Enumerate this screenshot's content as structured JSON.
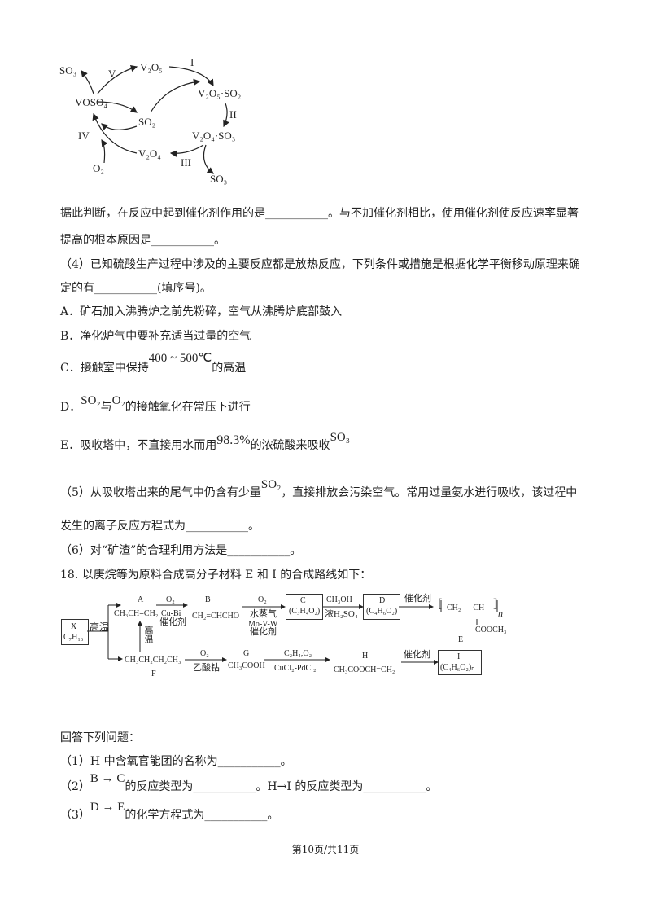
{
  "cycle": {
    "so3_top": "SO₃",
    "step_v": "V",
    "v2o5": "V₂O₅",
    "step_i": "I",
    "v2o5_so2": "V₂O₅·SO₂",
    "voso4": "VOSO₄",
    "so2": "SO₂",
    "step_ii": "II",
    "v2o4_so3": "V₂O₄·SO₃",
    "step_iv": "IV",
    "v2o4": "V₂O₄",
    "step_iii": "III",
    "so3_bottom": "SO₃",
    "o2": "O₂"
  },
  "lines": [
    "据此判断，在反应中起到催化剂作用的是___________。与不加催化剂相比，使用催化剂使反应速率显著",
    "提高的根本原因是___________。",
    "（4）已知硫酸生产过程中涉及的主要反应都是放热反应，下列条件或措施是根据化学平衡移动原理来确",
    "定的有___________(填序号)。",
    "A．矿石加入沸腾炉之前先粉碎，空气从沸腾炉底部鼓入",
    "B．净化炉气中要补充适当过量的空气"
  ],
  "option_c": {
    "prefix": "C．接触室中保持",
    "formula": "400 ~ 500℃",
    "suffix": "的高温"
  },
  "option_d": {
    "prefix": "D．",
    "f1": "SO₂",
    "mid": "与",
    "f2": "O₂",
    "suffix": "的接触氧化在常压下进行"
  },
  "option_e": {
    "prefix": "E．吸收塔中，不直接用水而用",
    "formula": "98.3%",
    "mid": "的浓硫酸来吸收",
    "f2": "SO₃"
  },
  "q5": {
    "prefix": "（5）从吸收塔出来的尾气中仍含有少量",
    "formula": "SO₂",
    "suffix": "，直接排放会污染空气。常用过量氨水进行吸收，该过程中"
  },
  "lines2": [
    "发生的离子反应方程式为___________。",
    "（6）对“矿渣”的合理利用方法是___________。",
    "18. 以庚烷等为原料合成高分子材料 E 和 I 的合成路线如下："
  ],
  "route": {
    "x_label": "X",
    "x_formula": "C₇H₁₆",
    "high_temp": "高温",
    "high_temp_vertical": "高温",
    "a_label": "A",
    "a_formula": "CH₃CH=CH₂",
    "ab_reagent": "O₂",
    "ab_cat1": "Cu-Bi",
    "ab_cat2": "催化剂",
    "b_label": "B",
    "b_formula": "CH₂=CHCHO",
    "bc_reagent": "O₂",
    "bc_cond1": "水蒸气",
    "bc_cond2": "Mo-V-W",
    "bc_cond3": "催化剂",
    "c_label": "C",
    "c_formula": "(C₃H₄O₂)",
    "cd_reagent": "CH₃OH",
    "cd_cond": "浓H₂SO₄",
    "d_label": "D",
    "d_formula": "(C₄H₆O₂)",
    "de_cat": "催化剂",
    "e_main": "CH₂ — CH",
    "e_n": "n",
    "e_side": "COOCH₃",
    "e_label": "E",
    "f_formula": "CH₃CH₂CH₂CH₃",
    "f_label": "F",
    "fg_reagent": "O₂",
    "fg_cat": "乙酸钴",
    "g_label": "G",
    "g_formula": "CH₃COOH",
    "gh_reagent": "C₂H₄,O₂",
    "gh_cat": "CuCl₂-PdCl₂",
    "h_label": "H",
    "h_formula": "CH₃COOCH=CH₂",
    "hi_cat": "催化剂",
    "i_label": "I",
    "i_formula": "(C₄H₆O₂)ₙ"
  },
  "answer_intro": "回答下列问题：",
  "q18_1": "（1）H 中含氧官能团的名称为___________。",
  "q18_2": {
    "prefix": "（2）",
    "formula": "B → C",
    "mid": "的反应类型为___________。H→I 的反应类型为___________。"
  },
  "q18_3": {
    "prefix": "（3）",
    "formula": "D → E",
    "suffix": "的化学方程式为___________。"
  },
  "footer": "第10页/共11页"
}
